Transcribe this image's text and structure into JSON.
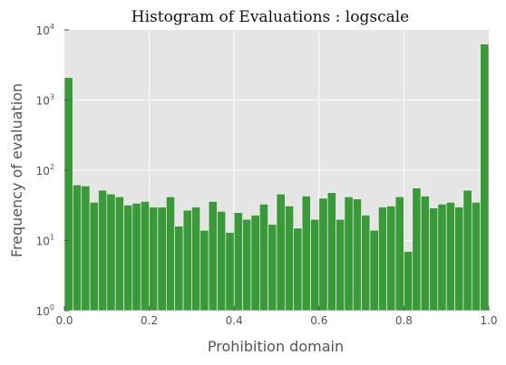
{
  "chart_data": {
    "type": "bar",
    "title": "Histogram of Evaluations : logscale",
    "xlabel": "Prohibition domain",
    "ylabel": "Frequency of evaluation",
    "xlim": [
      0,
      1
    ],
    "ylim": [
      1,
      10000
    ],
    "yscale": "log",
    "grid": true,
    "bar_color": "#3a9a3a",
    "background": "#e5e5e5",
    "x_ticks": [
      "0.0",
      "0.2",
      "0.4",
      "0.6",
      "0.8",
      "1.0"
    ],
    "y_ticks": [
      {
        "base": "10",
        "exp": "0"
      },
      {
        "base": "10",
        "exp": "1"
      },
      {
        "base": "10",
        "exp": "2"
      },
      {
        "base": "10",
        "exp": "3"
      },
      {
        "base": "10",
        "exp": "4"
      }
    ],
    "bin_width": 0.02,
    "bins_start": [
      0.0,
      0.02,
      0.04,
      0.06,
      0.08,
      0.1,
      0.12,
      0.14,
      0.16,
      0.18,
      0.2,
      0.22,
      0.24,
      0.26,
      0.28,
      0.3,
      0.32,
      0.34,
      0.36,
      0.38,
      0.4,
      0.42,
      0.44,
      0.46,
      0.48,
      0.5,
      0.52,
      0.54,
      0.56,
      0.58,
      0.6,
      0.62,
      0.64,
      0.66,
      0.68,
      0.7,
      0.72,
      0.74,
      0.76,
      0.78,
      0.8,
      0.82,
      0.84,
      0.86,
      0.88,
      0.9,
      0.92,
      0.94,
      0.96,
      0.98
    ],
    "values": [
      2100,
      62,
      60,
      35,
      52,
      46,
      42,
      32,
      34,
      36,
      30,
      30,
      42,
      16,
      27,
      30,
      14,
      36,
      26,
      13,
      25,
      20,
      23,
      33,
      17,
      46,
      31,
      15,
      43,
      20,
      40,
      48,
      20,
      42,
      39,
      23,
      14,
      30,
      31,
      42,
      7,
      56,
      43,
      29,
      33,
      35,
      30,
      52,
      35,
      6300
    ]
  }
}
